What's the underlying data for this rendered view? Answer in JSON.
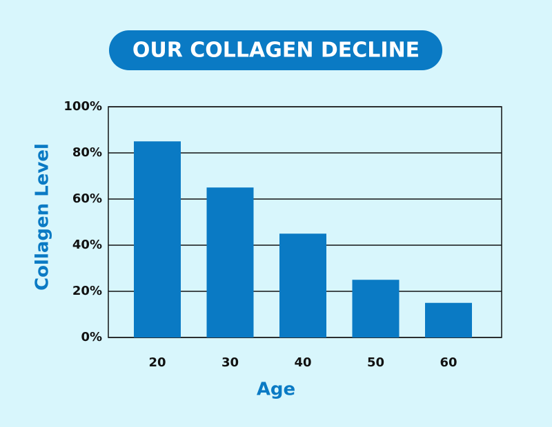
{
  "chart_data": {
    "type": "bar",
    "title": "OUR COLLAGEN DECLINE",
    "x_label": "Age",
    "y_label": "Collagen Level",
    "categories": [
      "20",
      "30",
      "40",
      "50",
      "60"
    ],
    "values": [
      85,
      65,
      45,
      25,
      15
    ],
    "color": "#0a7ac4",
    "ylim": [
      0,
      100
    ],
    "yticks": [
      {
        "value": 0,
        "label": "0%"
      },
      {
        "value": 20,
        "label": "20%"
      },
      {
        "value": 40,
        "label": "40%"
      },
      {
        "value": 60,
        "label": "60%"
      },
      {
        "value": 80,
        "label": "80%"
      },
      {
        "value": 100,
        "label": "100%"
      }
    ],
    "grid": true
  }
}
